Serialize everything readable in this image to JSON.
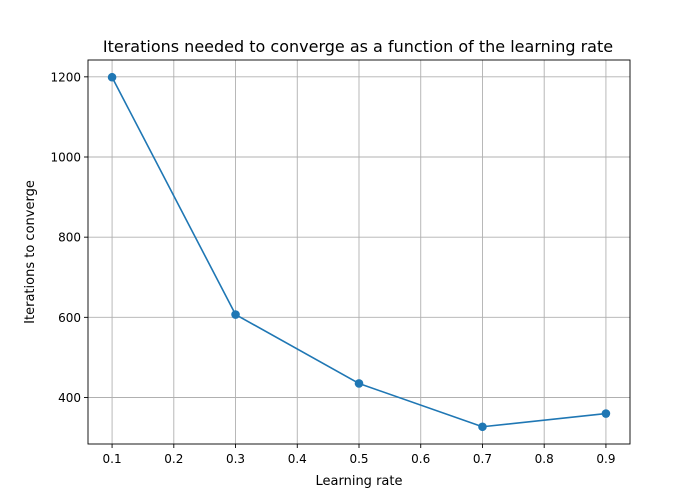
{
  "chart_data": {
    "type": "line",
    "title": "Iterations needed to converge as a function of the learning rate",
    "xlabel": "Learning rate",
    "ylabel": "Iterations to converge",
    "x": [
      0.1,
      0.3,
      0.5,
      0.7,
      0.9
    ],
    "series": [
      {
        "values": [
          1199,
          607,
          435,
          327,
          360
        ],
        "color": "#1f77b4",
        "marker": "circle"
      }
    ],
    "xlim": [
      0.061,
      0.939
    ],
    "ylim": [
      284,
      1242
    ],
    "xticks": [
      0.1,
      0.2,
      0.3,
      0.4,
      0.5,
      0.6,
      0.7,
      0.8,
      0.9
    ],
    "xtick_labels": [
      "0.1",
      "0.2",
      "0.3",
      "0.4",
      "0.5",
      "0.6",
      "0.7",
      "0.8",
      "0.9"
    ],
    "yticks": [
      400,
      600,
      800,
      1000,
      1200
    ],
    "ytick_labels": [
      "400",
      "600",
      "800",
      "1000",
      "1200"
    ],
    "grid": true,
    "legend": "none"
  }
}
